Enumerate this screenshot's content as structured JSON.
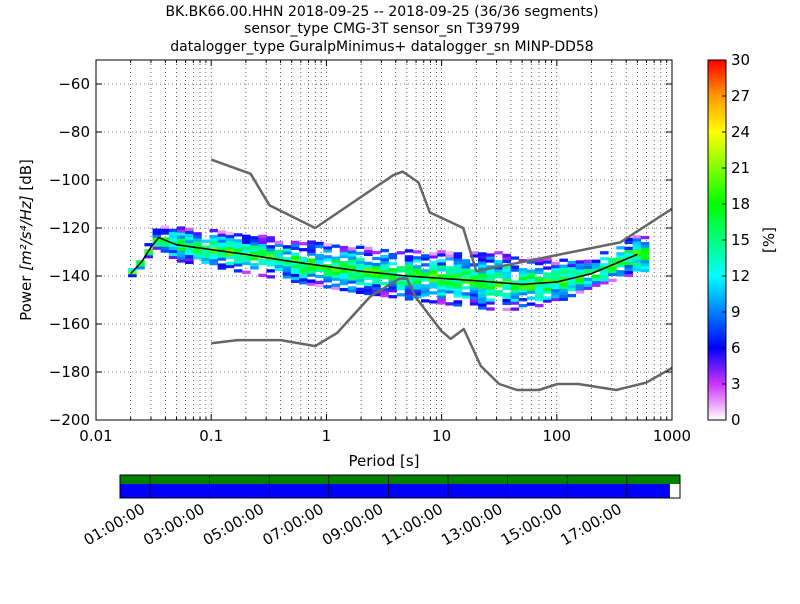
{
  "chart_data": {
    "type": "heatmap",
    "title_lines": [
      "BK.BK66.00.HHN   2018-09-25 -- 2018-09-25  (36/36 segments)",
      "sensor_type CMG-3T sensor_sn T39799",
      "datalogger_type GuralpMinimus+ datalogger_sn MINP-DD58"
    ],
    "xlabel": "Period [s]",
    "ylabel_prefix": "Power ",
    "ylabel_unit": "[m²/s⁴/Hz]",
    "ylabel_suffix": " [dB]",
    "xscale": "log",
    "xlim": [
      0.01,
      1000
    ],
    "ylim": [
      -200,
      -50
    ],
    "x_ticks": [
      {
        "value": 0.01,
        "label": "0.01"
      },
      {
        "value": 0.1,
        "label": "0.1"
      },
      {
        "value": 1,
        "label": "1"
      },
      {
        "value": 10,
        "label": "10"
      },
      {
        "value": 100,
        "label": "100"
      },
      {
        "value": 1000,
        "label": "1000"
      }
    ],
    "y_ticks": [
      {
        "value": -60,
        "label": "−60"
      },
      {
        "value": -80,
        "label": "−80"
      },
      {
        "value": -100,
        "label": "−100"
      },
      {
        "value": -120,
        "label": "−120"
      },
      {
        "value": -140,
        "label": "−140"
      },
      {
        "value": -160,
        "label": "−160"
      },
      {
        "value": -180,
        "label": "−180"
      },
      {
        "value": -200,
        "label": "−200"
      }
    ],
    "grid": "dotted",
    "noise_models": [
      {
        "points": [
          [
            0.1,
            -91.5
          ],
          [
            0.22,
            -97.4
          ],
          [
            0.32,
            -110.5
          ],
          [
            0.8,
            -120
          ],
          [
            3.8,
            -98
          ],
          [
            4.6,
            -96.5
          ],
          [
            6.3,
            -101
          ],
          [
            7.9,
            -113.5
          ],
          [
            15.4,
            -120
          ],
          [
            20,
            -138
          ],
          [
            354.8,
            -126
          ],
          [
            1000,
            -112
          ]
        ]
      },
      {
        "points": [
          [
            0.1,
            -168
          ],
          [
            0.17,
            -166.7
          ],
          [
            0.4,
            -166.7
          ],
          [
            0.8,
            -169.2
          ],
          [
            1.24,
            -163.7
          ],
          [
            2.4,
            -148.6
          ],
          [
            4.3,
            -141.1
          ],
          [
            5,
            -141.1
          ],
          [
            6,
            -149
          ],
          [
            10,
            -163
          ],
          [
            12,
            -166.2
          ],
          [
            15.6,
            -162.1
          ],
          [
            21.9,
            -177.5
          ],
          [
            31.6,
            -185
          ],
          [
            45,
            -187.5
          ],
          [
            70,
            -187.5
          ],
          [
            101,
            -185
          ],
          [
            154,
            -185
          ],
          [
            328,
            -187.5
          ],
          [
            600,
            -184.4
          ],
          [
            1000,
            -178.3
          ]
        ]
      }
    ],
    "mean_curve": [
      [
        0.02,
        -139
      ],
      [
        0.025,
        -134
      ],
      [
        0.03,
        -128
      ],
      [
        0.035,
        -124
      ],
      [
        0.05,
        -127
      ],
      [
        0.1,
        -129
      ],
      [
        0.2,
        -131
      ],
      [
        0.5,
        -134
      ],
      [
        1,
        -136
      ],
      [
        2,
        -138
      ],
      [
        5,
        -140
      ],
      [
        10,
        -141
      ],
      [
        20,
        -142
      ],
      [
        50,
        -143.5
      ],
      [
        100,
        -142.5
      ],
      [
        200,
        -139
      ],
      [
        500,
        -131
      ]
    ],
    "psd_band": {
      "center": [
        [
          0.02,
          -139
        ],
        [
          0.025,
          -134
        ],
        [
          0.03,
          -128
        ],
        [
          0.035,
          -124
        ],
        [
          0.05,
          -127
        ],
        [
          0.1,
          -129
        ],
        [
          0.2,
          -131
        ],
        [
          0.5,
          -134
        ],
        [
          1,
          -136
        ],
        [
          2,
          -138
        ],
        [
          5,
          -140
        ],
        [
          10,
          -141
        ],
        [
          20,
          -142
        ],
        [
          50,
          -143.5
        ],
        [
          100,
          -142.5
        ],
        [
          200,
          -139
        ],
        [
          500,
          -131
        ]
      ],
      "halfwidth": [
        [
          0.02,
          2
        ],
        [
          0.03,
          3
        ],
        [
          0.05,
          7
        ],
        [
          0.2,
          8
        ],
        [
          1,
          9
        ],
        [
          5,
          10
        ],
        [
          30,
          12
        ],
        [
          100,
          9
        ],
        [
          200,
          6
        ],
        [
          700,
          9
        ]
      ]
    },
    "colorbar": {
      "label": "[%]",
      "min": 0,
      "max": 30,
      "ticks": [
        {
          "value": 0,
          "label": "0"
        },
        {
          "value": 3,
          "label": "3"
        },
        {
          "value": 6,
          "label": "6"
        },
        {
          "value": 9,
          "label": "9"
        },
        {
          "value": 12,
          "label": "12"
        },
        {
          "value": 15,
          "label": "15"
        },
        {
          "value": 18,
          "label": "18"
        },
        {
          "value": 21,
          "label": "21"
        },
        {
          "value": 24,
          "label": "24"
        },
        {
          "value": 27,
          "label": "27"
        },
        {
          "value": 30,
          "label": "30"
        }
      ],
      "stops": [
        [
          0,
          "#ffffff"
        ],
        [
          0.1,
          "#cc33ff"
        ],
        [
          0.2,
          "#0000ff"
        ],
        [
          0.4,
          "#00ffff"
        ],
        [
          0.6,
          "#00ff00"
        ],
        [
          0.8,
          "#ffff00"
        ],
        [
          0.9,
          "#ff9900"
        ],
        [
          1,
          "#ff0000"
        ]
      ]
    },
    "timeline": {
      "time_ticks": [
        "01:00:00",
        "03:00:00",
        "05:00:00",
        "07:00:00",
        "09:00:00",
        "11:00:00",
        "13:00:00",
        "15:00:00",
        "17:00:00"
      ],
      "data_coverage": 0.982,
      "colors": {
        "available": "#0000ff",
        "used": "#008000"
      }
    }
  }
}
